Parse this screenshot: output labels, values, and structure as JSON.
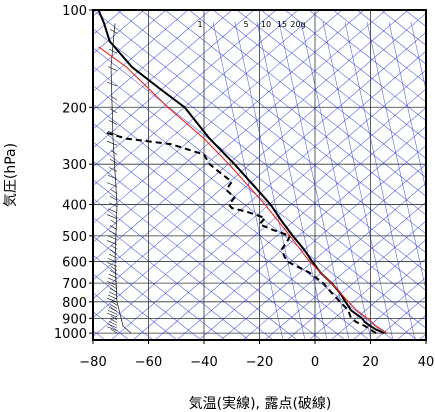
{
  "chart_data": {
    "type": "line",
    "title": "",
    "xlabel": "気温(実線), 露点(破線)",
    "ylabel": "気圧(hPa)",
    "xlim": [
      -80,
      40
    ],
    "ylim": [
      1050,
      100
    ],
    "y_scale": "log",
    "x_ticks": [
      -80,
      -60,
      -40,
      -20,
      0,
      20,
      40
    ],
    "y_ticks": [
      100,
      200,
      300,
      400,
      500,
      600,
      700,
      800,
      900,
      1000
    ],
    "grid": true,
    "mixing_ratio_labels": [
      "1",
      "5",
      "10",
      "15",
      "20g"
    ],
    "series": [
      {
        "key": "temperature",
        "style": "solid",
        "color": "#000000",
        "points": [
          [
            1000,
            25
          ],
          [
            975,
            22
          ],
          [
            950,
            20
          ],
          [
            925,
            18
          ],
          [
            900,
            17
          ],
          [
            875,
            15
          ],
          [
            850,
            13
          ],
          [
            800,
            11
          ],
          [
            750,
            9
          ],
          [
            700,
            6
          ],
          [
            650,
            2
          ],
          [
            600,
            -1
          ],
          [
            550,
            -4
          ],
          [
            500,
            -8
          ],
          [
            450,
            -12
          ],
          [
            400,
            -16
          ],
          [
            350,
            -22
          ],
          [
            300,
            -29
          ],
          [
            250,
            -38
          ],
          [
            200,
            -47
          ],
          [
            175,
            -56
          ],
          [
            150,
            -66
          ],
          [
            125,
            -74
          ],
          [
            110,
            -76
          ],
          [
            100,
            -78
          ]
        ]
      },
      {
        "key": "dewpoint",
        "style": "dashed",
        "color": "#000000",
        "points": [
          [
            1000,
            22
          ],
          [
            975,
            20
          ],
          [
            950,
            18
          ],
          [
            925,
            15
          ],
          [
            900,
            13
          ],
          [
            850,
            12
          ],
          [
            800,
            9
          ],
          [
            750,
            6
          ],
          [
            700,
            3
          ],
          [
            650,
            -2
          ],
          [
            600,
            -10
          ],
          [
            580,
            -11
          ],
          [
            550,
            -12
          ],
          [
            520,
            -10
          ],
          [
            500,
            -9
          ],
          [
            480,
            -15
          ],
          [
            460,
            -20
          ],
          [
            440,
            -18
          ],
          [
            420,
            -25
          ],
          [
            410,
            -30
          ],
          [
            400,
            -31
          ],
          [
            380,
            -29
          ],
          [
            360,
            -32
          ],
          [
            340,
            -30
          ],
          [
            320,
            -34
          ],
          [
            300,
            -38
          ],
          [
            280,
            -40
          ],
          [
            260,
            -52
          ],
          [
            250,
            -68
          ],
          [
            240,
            -75
          ]
        ]
      },
      {
        "key": "parcel",
        "style": "solid",
        "color": "#e8281e",
        "points": [
          [
            1000,
            26
          ],
          [
            950,
            22
          ],
          [
            900,
            19
          ],
          [
            850,
            15
          ],
          [
            800,
            12
          ],
          [
            700,
            6
          ],
          [
            600,
            -2
          ],
          [
            500,
            -9
          ],
          [
            400,
            -18
          ],
          [
            300,
            -31
          ],
          [
            250,
            -40
          ],
          [
            200,
            -53
          ],
          [
            150,
            -68
          ],
          [
            130,
            -78
          ]
        ]
      }
    ]
  }
}
